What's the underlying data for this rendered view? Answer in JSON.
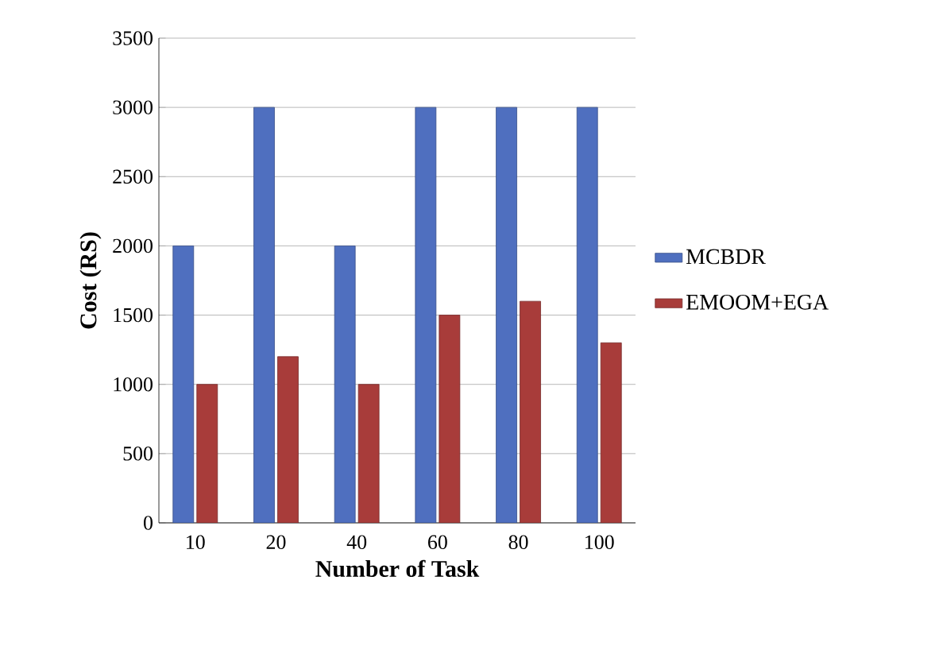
{
  "chart_data": {
    "type": "bar",
    "xlabel": "Number of Task",
    "ylabel": "Cost  (RS)",
    "categories": [
      "10",
      "20",
      "40",
      "60",
      "80",
      "100"
    ],
    "series": [
      {
        "name": "MCBDR",
        "color": "#4f6fbf",
        "values": [
          2000,
          3000,
          2000,
          3000,
          3000,
          3000
        ]
      },
      {
        "name": "EMOOM+EGA",
        "color": "#a83c3a",
        "values": [
          1000,
          1200,
          1000,
          1500,
          1600,
          1300
        ]
      }
    ],
    "ylim": [
      0,
      3500
    ],
    "yticks": [
      0,
      500,
      1000,
      1500,
      2000,
      2500,
      3000,
      3500
    ],
    "grid": "y",
    "legend": "right"
  }
}
